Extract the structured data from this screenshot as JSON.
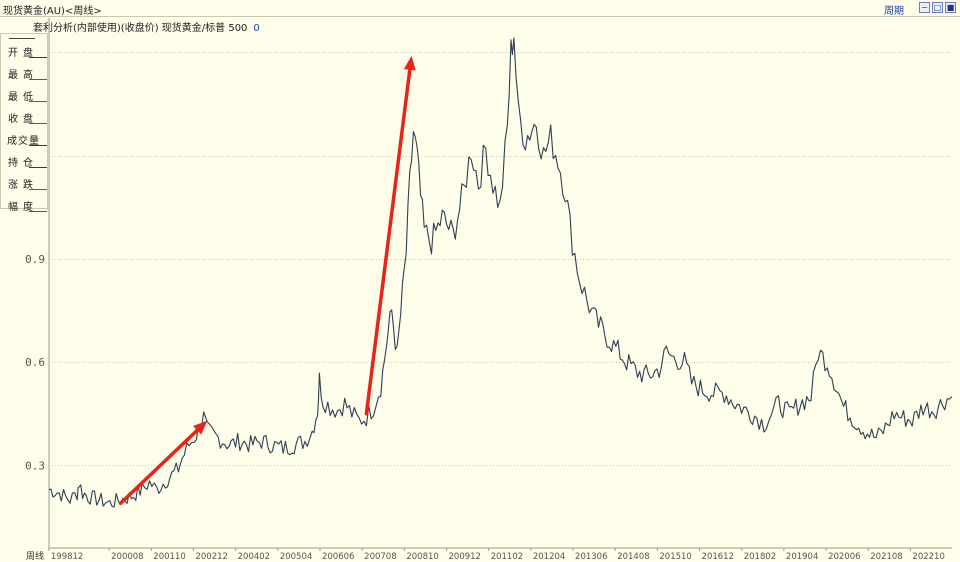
{
  "window": {
    "title": "现货黄金(AU)<周线>",
    "period_label": "周期"
  },
  "legend_panel": {
    "items": [
      "开盘",
      "最高",
      "最低",
      "收盘",
      "成交量",
      "持仓",
      "涨跌",
      "幅度"
    ]
  },
  "colors": {
    "background": "#fdfde9",
    "line": "#2d3f52",
    "arrow": "#e8231a",
    "grid": "#c9c9b6",
    "axis_text": "#555555"
  },
  "chart_data": {
    "type": "line",
    "title": "套利分析(内部使用)(收盘价) 现货黄金/标普 500",
    "value_label": "0",
    "x_axis_label": "周线",
    "x_ticks": [
      "199812",
      "200008",
      "200110",
      "200212",
      "200402",
      "200504",
      "200606",
      "200708",
      "200810",
      "200912",
      "201102",
      "201204",
      "201306",
      "201408",
      "201510",
      "201612",
      "201802",
      "201904",
      "202006",
      "202108",
      "202210"
    ],
    "y_ticks": [
      0.3,
      0.6,
      0.9
    ],
    "y_range": [
      0.06,
      1.6
    ],
    "x_range": [
      1998.92,
      2023.9
    ],
    "series": [
      {
        "points": [
          [
            1998.92,
            0.23
          ],
          [
            1999.2,
            0.22
          ],
          [
            1999.5,
            0.2
          ],
          [
            1999.7,
            0.22
          ],
          [
            1999.75,
            0.25
          ],
          [
            1999.85,
            0.22
          ],
          [
            2000.0,
            0.21
          ],
          [
            2000.3,
            0.2
          ],
          [
            2000.6,
            0.19
          ],
          [
            2000.9,
            0.2
          ],
          [
            2001.2,
            0.21
          ],
          [
            2001.5,
            0.23
          ],
          [
            2001.7,
            0.25
          ],
          [
            2001.9,
            0.23
          ],
          [
            2002.2,
            0.26
          ],
          [
            2002.5,
            0.29
          ],
          [
            2002.6,
            0.32
          ],
          [
            2002.8,
            0.36
          ],
          [
            2003.0,
            0.39
          ],
          [
            2003.1,
            0.42
          ],
          [
            2003.2,
            0.44
          ],
          [
            2003.3,
            0.4
          ],
          [
            2003.6,
            0.38
          ],
          [
            2003.9,
            0.36
          ],
          [
            2004.2,
            0.37
          ],
          [
            2004.5,
            0.36
          ],
          [
            2004.8,
            0.37
          ],
          [
            2005.1,
            0.36
          ],
          [
            2005.4,
            0.35
          ],
          [
            2005.7,
            0.36
          ],
          [
            2006.0,
            0.37
          ],
          [
            2006.2,
            0.4
          ],
          [
            2006.35,
            0.46
          ],
          [
            2006.4,
            0.55
          ],
          [
            2006.5,
            0.49
          ],
          [
            2006.7,
            0.47
          ],
          [
            2006.9,
            0.46
          ],
          [
            2007.1,
            0.48
          ],
          [
            2007.3,
            0.45
          ],
          [
            2007.5,
            0.43
          ],
          [
            2007.7,
            0.44
          ],
          [
            2007.9,
            0.47
          ],
          [
            2008.1,
            0.53
          ],
          [
            2008.25,
            0.65
          ],
          [
            2008.4,
            0.75
          ],
          [
            2008.55,
            0.62
          ],
          [
            2008.7,
            0.8
          ],
          [
            2008.8,
            0.92
          ],
          [
            2008.9,
            1.12
          ],
          [
            2009.0,
            1.27
          ],
          [
            2009.1,
            1.2
          ],
          [
            2009.2,
            1.08
          ],
          [
            2009.3,
            0.98
          ],
          [
            2009.5,
            0.95
          ],
          [
            2009.8,
            1.02
          ],
          [
            2010.1,
            0.97
          ],
          [
            2010.4,
            1.1
          ],
          [
            2010.6,
            1.22
          ],
          [
            2010.8,
            1.12
          ],
          [
            2011.0,
            1.22
          ],
          [
            2011.2,
            1.12
          ],
          [
            2011.4,
            1.05
          ],
          [
            2011.6,
            1.28
          ],
          [
            2011.7,
            1.5
          ],
          [
            2011.78,
            1.56
          ],
          [
            2011.9,
            1.32
          ],
          [
            2012.1,
            1.25
          ],
          [
            2012.4,
            1.3
          ],
          [
            2012.6,
            1.2
          ],
          [
            2012.8,
            1.25
          ],
          [
            2013.0,
            1.19
          ],
          [
            2013.2,
            1.1
          ],
          [
            2013.4,
            0.95
          ],
          [
            2013.6,
            0.84
          ],
          [
            2013.8,
            0.78
          ],
          [
            2014.0,
            0.73
          ],
          [
            2014.3,
            0.68
          ],
          [
            2014.6,
            0.64
          ],
          [
            2014.9,
            0.6
          ],
          [
            2015.2,
            0.57
          ],
          [
            2015.5,
            0.56
          ],
          [
            2015.8,
            0.58
          ],
          [
            2016.0,
            0.63
          ],
          [
            2016.2,
            0.61
          ],
          [
            2016.5,
            0.6
          ],
          [
            2016.7,
            0.54
          ],
          [
            2017.0,
            0.52
          ],
          [
            2017.3,
            0.51
          ],
          [
            2017.6,
            0.51
          ],
          [
            2017.9,
            0.48
          ],
          [
            2018.2,
            0.46
          ],
          [
            2018.5,
            0.44
          ],
          [
            2018.7,
            0.42
          ],
          [
            2018.9,
            0.45
          ],
          [
            2019.1,
            0.48
          ],
          [
            2019.4,
            0.45
          ],
          [
            2019.7,
            0.48
          ],
          [
            2020.0,
            0.5
          ],
          [
            2020.2,
            0.63
          ],
          [
            2020.45,
            0.6
          ],
          [
            2020.7,
            0.53
          ],
          [
            2020.9,
            0.47
          ],
          [
            2021.2,
            0.43
          ],
          [
            2021.5,
            0.4
          ],
          [
            2021.8,
            0.38
          ],
          [
            2022.0,
            0.4
          ],
          [
            2022.3,
            0.45
          ],
          [
            2022.5,
            0.44
          ],
          [
            2022.8,
            0.43
          ],
          [
            2023.1,
            0.47
          ],
          [
            2023.4,
            0.46
          ],
          [
            2023.7,
            0.49
          ],
          [
            2023.9,
            0.5
          ]
        ]
      }
    ],
    "annotations": [
      {
        "type": "arrow",
        "from": [
          2000.9,
          0.19
        ],
        "to": [
          2003.3,
          0.43
        ]
      },
      {
        "type": "arrow",
        "from": [
          2007.7,
          0.45
        ],
        "to": [
          2008.95,
          1.49
        ]
      }
    ]
  }
}
